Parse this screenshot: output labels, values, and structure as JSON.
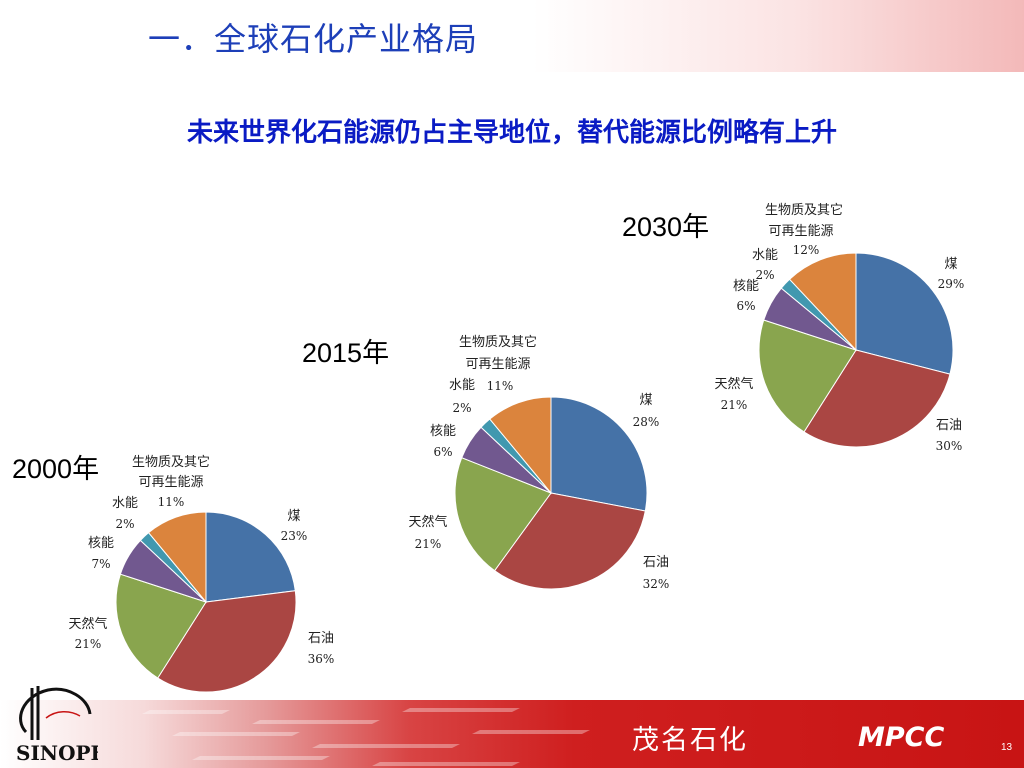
{
  "slide": {
    "title": "一．全球石化产业格局",
    "headline": "未来世界化石能源仍占主导地位，替代能源比例略有上升"
  },
  "footer": {
    "company": "茂名石化",
    "abbr": "MPCC",
    "page_number": "13",
    "logo_text": "中国石化 Sinopec"
  },
  "colors": {
    "coal": "#4572a7",
    "oil": "#aa4643",
    "gas": "#89a54e",
    "nuclear": "#71588f",
    "hydro": "#4198af",
    "bio": "#db843d",
    "title": "#1d3fb8",
    "headline": "#0a1bc4",
    "footer_red": "#c81414"
  },
  "chart_data": [
    {
      "type": "pie",
      "year_label": "2000年",
      "categories": [
        "煤",
        "石油",
        "天然气",
        "核能",
        "水能",
        "生物质及其它可再生能源"
      ],
      "values": [
        23,
        36,
        21,
        7,
        2,
        11
      ],
      "value_labels": [
        "23%",
        "36%",
        "21%",
        "7%",
        "2%",
        "11%"
      ]
    },
    {
      "type": "pie",
      "year_label": "2015年",
      "categories": [
        "煤",
        "石油",
        "天然气",
        "核能",
        "水能",
        "生物质及其它可再生能源"
      ],
      "values": [
        28,
        32,
        21,
        6,
        2,
        11
      ],
      "value_labels": [
        "28%",
        "32%",
        "21%",
        "6%",
        "2%",
        "11%"
      ]
    },
    {
      "type": "pie",
      "year_label": "2030年",
      "categories": [
        "煤",
        "石油",
        "天然气",
        "核能",
        "水能",
        "生物质及其它可再生能源"
      ],
      "values": [
        29,
        30,
        21,
        6,
        2,
        12
      ],
      "value_labels": [
        "29%",
        "30%",
        "21%",
        "6%",
        "2%",
        "12%"
      ]
    }
  ],
  "label_text": {
    "coal": "煤",
    "oil": "石油",
    "gas": "天然气",
    "nuclear": "核能",
    "hydro": "水能",
    "bio_line1": "生物质及其它",
    "bio_line2": "可再生能源"
  }
}
